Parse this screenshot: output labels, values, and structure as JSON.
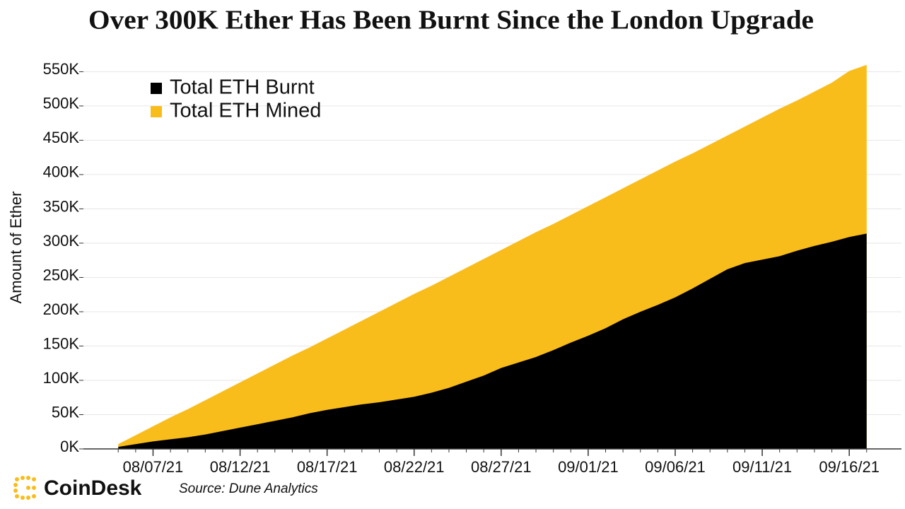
{
  "chart_data": {
    "type": "area",
    "title": "Over 300K Ether Has Been Burnt Since the London Upgrade",
    "y_label": "Amount of Ether",
    "source": "Source: Dune Analytics",
    "brand": "CoinDesk",
    "x": [
      "08/05/21",
      "08/06/21",
      "08/07/21",
      "08/08/21",
      "08/09/21",
      "08/10/21",
      "08/11/21",
      "08/12/21",
      "08/13/21",
      "08/14/21",
      "08/15/21",
      "08/16/21",
      "08/17/21",
      "08/18/21",
      "08/19/21",
      "08/20/21",
      "08/21/21",
      "08/22/21",
      "08/23/21",
      "08/24/21",
      "08/25/21",
      "08/26/21",
      "08/27/21",
      "08/28/21",
      "08/29/21",
      "08/30/21",
      "08/31/21",
      "09/01/21",
      "09/02/21",
      "09/03/21",
      "09/04/21",
      "09/05/21",
      "09/06/21",
      "09/07/21",
      "09/08/21",
      "09/09/21",
      "09/10/21",
      "09/11/21",
      "09/12/21",
      "09/13/21",
      "09/14/21",
      "09/15/21",
      "09/16/21",
      "09/17/21"
    ],
    "xlim": [
      "08/03/21",
      "09/19/21"
    ],
    "xticks": [
      "08/07/21",
      "08/12/21",
      "08/17/21",
      "08/22/21",
      "08/27/21",
      "09/01/21",
      "09/06/21",
      "09/11/21",
      "09/16/21"
    ],
    "ylim": [
      0,
      570000
    ],
    "yticks": [
      {
        "value": 0,
        "label": "0K"
      },
      {
        "value": 50000,
        "label": "50K"
      },
      {
        "value": 100000,
        "label": "100K"
      },
      {
        "value": 150000,
        "label": "150K"
      },
      {
        "value": 200000,
        "label": "200K"
      },
      {
        "value": 250000,
        "label": "250K"
      },
      {
        "value": 300000,
        "label": "300K"
      },
      {
        "value": 350000,
        "label": "350K"
      },
      {
        "value": 400000,
        "label": "400K"
      },
      {
        "value": 450000,
        "label": "450K"
      },
      {
        "value": 500000,
        "label": "500K"
      },
      {
        "value": 550000,
        "label": "550K"
      }
    ],
    "grid": true,
    "legend": "upper-left",
    "series": [
      {
        "name": "Total ETH Mined",
        "color": "#f9bd1b",
        "values": [
          7000,
          20000,
          33000,
          46000,
          58000,
          71000,
          84000,
          97000,
          110000,
          123000,
          136000,
          148000,
          161000,
          174000,
          187000,
          200000,
          213000,
          226000,
          238000,
          251000,
          264000,
          277000,
          290000,
          303000,
          316000,
          328000,
          341000,
          354000,
          367000,
          380000,
          393000,
          406000,
          419000,
          431000,
          444000,
          457000,
          470000,
          483000,
          496000,
          508000,
          521000,
          534000,
          551000,
          560000
        ]
      },
      {
        "name": "Total ETH Burnt",
        "color": "#000000",
        "values": [
          3000,
          7000,
          11000,
          14000,
          17000,
          21000,
          26000,
          31000,
          36000,
          41000,
          46000,
          52000,
          57000,
          61000,
          65000,
          68000,
          72000,
          76000,
          82000,
          89000,
          98000,
          107000,
          118000,
          126000,
          134000,
          144000,
          155000,
          165000,
          176000,
          189000,
          200000,
          210000,
          221000,
          234000,
          248000,
          262000,
          271000,
          276000,
          281000,
          289000,
          296000,
          302000,
          309000,
          314000
        ]
      }
    ]
  }
}
